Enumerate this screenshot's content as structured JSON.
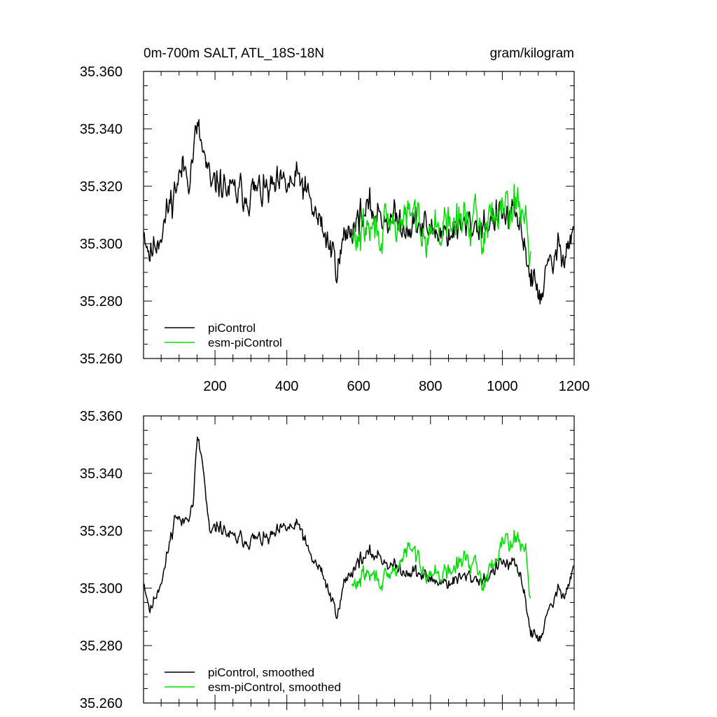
{
  "chart_data": [
    {
      "type": "line",
      "title_left": "0m-700m SALT, ATL_18S-18N",
      "title_right": "gram/kilogram",
      "xlim": [
        1,
        1200
      ],
      "ylim": [
        35.26,
        35.36
      ],
      "x_major_ticks": [
        200,
        400,
        600,
        800,
        1000,
        1200
      ],
      "y_major_ticks": [
        35.26,
        35.28,
        35.3,
        35.32,
        35.34,
        35.36
      ],
      "y_tick_labels": [
        "35.260",
        "35.280",
        "35.300",
        "35.320",
        "35.340",
        "35.360"
      ],
      "x_tick_labels": [
        "200",
        "400",
        "600",
        "800",
        "1000",
        "1200"
      ],
      "grid": false,
      "legend_position": "bottom-left",
      "series": [
        {
          "name": "piControl",
          "color": "#000000",
          "x_start": 1,
          "x_end": 1200,
          "noise": 0.0065,
          "seed": 11,
          "trend": [
            [
              1,
              35.306
            ],
            [
              20,
              35.296
            ],
            [
              60,
              35.308
            ],
            [
              90,
              35.32
            ],
            [
              110,
              35.326
            ],
            [
              130,
              35.325
            ],
            [
              150,
              35.34
            ],
            [
              170,
              35.33
            ],
            [
              190,
              35.318
            ],
            [
              210,
              35.322
            ],
            [
              250,
              35.317
            ],
            [
              300,
              35.318
            ],
            [
              350,
              35.318
            ],
            [
              400,
              35.32
            ],
            [
              440,
              35.322
            ],
            [
              460,
              35.315
            ],
            [
              500,
              35.305
            ],
            [
              530,
              35.296
            ],
            [
              545,
              35.293
            ],
            [
              560,
              35.302
            ],
            [
              600,
              35.31
            ],
            [
              650,
              35.311
            ],
            [
              700,
              35.308
            ],
            [
              750,
              35.307
            ],
            [
              800,
              35.305
            ],
            [
              850,
              35.304
            ],
            [
              900,
              35.306
            ],
            [
              950,
              35.307
            ],
            [
              1000,
              35.31
            ],
            [
              1040,
              35.308
            ],
            [
              1060,
              35.302
            ],
            [
              1080,
              35.288
            ],
            [
              1100,
              35.282
            ],
            [
              1120,
              35.288
            ],
            [
              1150,
              35.296
            ],
            [
              1180,
              35.3
            ],
            [
              1200,
              35.305
            ]
          ]
        },
        {
          "name": "esm-piControl",
          "color": "#00e000",
          "x_start": 581,
          "x_end": 1080,
          "noise": 0.0075,
          "seed": 29,
          "trend": [
            [
              581,
              35.3
            ],
            [
              620,
              35.305
            ],
            [
              680,
              35.304
            ],
            [
              740,
              35.31
            ],
            [
              800,
              35.305
            ],
            [
              850,
              35.306
            ],
            [
              900,
              35.309
            ],
            [
              950,
              35.304
            ],
            [
              980,
              35.312
            ],
            [
              1000,
              35.316
            ],
            [
              1040,
              35.314
            ],
            [
              1065,
              35.31
            ],
            [
              1080,
              35.296
            ]
          ]
        }
      ]
    },
    {
      "type": "line",
      "xlim": [
        1,
        1200
      ],
      "ylim": [
        35.26,
        35.36
      ],
      "x_major_ticks": [
        200,
        400,
        600,
        800,
        1000,
        1200
      ],
      "y_major_ticks": [
        35.26,
        35.28,
        35.3,
        35.32,
        35.34,
        35.36
      ],
      "y_tick_labels": [
        "35.260",
        "35.280",
        "35.300",
        "35.320",
        "35.340",
        "35.360"
      ],
      "grid": false,
      "legend_position": "bottom-left",
      "series": [
        {
          "name": "piControl, smoothed",
          "color": "#000000",
          "x_start": 1,
          "x_end": 1200,
          "noise": 0.0028,
          "seed": 11,
          "trend": [
            [
              1,
              35.303
            ],
            [
              20,
              35.292
            ],
            [
              60,
              35.307
            ],
            [
              90,
              35.326
            ],
            [
              110,
              35.322
            ],
            [
              140,
              35.33
            ],
            [
              150,
              35.352
            ],
            [
              165,
              35.344
            ],
            [
              185,
              35.318
            ],
            [
              210,
              35.322
            ],
            [
              250,
              35.317
            ],
            [
              300,
              35.317
            ],
            [
              350,
              35.317
            ],
            [
              400,
              35.321
            ],
            [
              440,
              35.321
            ],
            [
              460,
              35.312
            ],
            [
              500,
              35.305
            ],
            [
              530,
              35.294
            ],
            [
              545,
              35.292
            ],
            [
              560,
              35.302
            ],
            [
              600,
              35.31
            ],
            [
              650,
              35.312
            ],
            [
              700,
              35.307
            ],
            [
              750,
              35.306
            ],
            [
              800,
              35.303
            ],
            [
              850,
              35.302
            ],
            [
              900,
              35.304
            ],
            [
              950,
              35.303
            ],
            [
              1000,
              35.309
            ],
            [
              1040,
              35.307
            ],
            [
              1060,
              35.3
            ],
            [
              1080,
              35.284
            ],
            [
              1100,
              35.282
            ],
            [
              1120,
              35.288
            ],
            [
              1150,
              35.298
            ],
            [
              1180,
              35.3
            ],
            [
              1200,
              35.308
            ]
          ]
        },
        {
          "name": "esm-piControl, smoothed",
          "color": "#00e000",
          "x_start": 581,
          "x_end": 1080,
          "noise": 0.0035,
          "seed": 29,
          "trend": [
            [
              581,
              35.3
            ],
            [
              620,
              35.305
            ],
            [
              680,
              35.302
            ],
            [
              740,
              35.314
            ],
            [
              800,
              35.305
            ],
            [
              850,
              35.305
            ],
            [
              900,
              35.311
            ],
            [
              950,
              35.302
            ],
            [
              980,
              35.31
            ],
            [
              1000,
              35.318
            ],
            [
              1040,
              35.317
            ],
            [
              1065,
              35.314
            ],
            [
              1080,
              35.295
            ]
          ]
        }
      ]
    }
  ]
}
